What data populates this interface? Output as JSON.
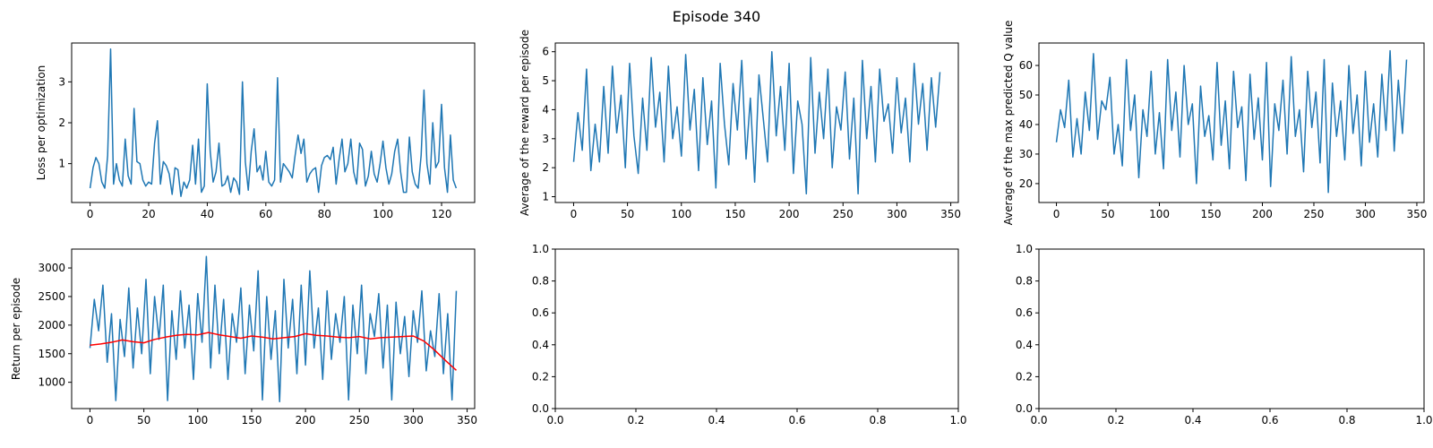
{
  "figure": {
    "suptitle": "Episode 340"
  },
  "chart_data": [
    {
      "id": "loss",
      "type": "line",
      "ylabel": "Loss per optimization",
      "xlim": [
        -6.3,
        131.3
      ],
      "ylim": [
        0.05,
        3.95
      ],
      "xticks": [
        0,
        20,
        40,
        60,
        80,
        100,
        120
      ],
      "yticks": [
        1,
        2,
        3
      ],
      "series": [
        {
          "color": "#1f77b4",
          "x": [
            0,
            1,
            2,
            3,
            4,
            5,
            6,
            7,
            8,
            9,
            10,
            11,
            12,
            13,
            14,
            15,
            16,
            17,
            18,
            19,
            20,
            21,
            22,
            23,
            24,
            25,
            26,
            27,
            28,
            29,
            30,
            31,
            32,
            33,
            34,
            35,
            36,
            37,
            38,
            39,
            40,
            41,
            42,
            43,
            44,
            45,
            46,
            47,
            48,
            49,
            50,
            51,
            52,
            53,
            54,
            55,
            56,
            57,
            58,
            59,
            60,
            61,
            62,
            63,
            64,
            65,
            66,
            67,
            68,
            69,
            70,
            71,
            72,
            73,
            74,
            75,
            76,
            77,
            78,
            79,
            80,
            81,
            82,
            83,
            84,
            85,
            86,
            87,
            88,
            89,
            90,
            91,
            92,
            93,
            94,
            95,
            96,
            97,
            98,
            99,
            100,
            101,
            102,
            103,
            104,
            105,
            106,
            107,
            108,
            109,
            110,
            111,
            112,
            113,
            114,
            115,
            116,
            117,
            118,
            119,
            120,
            121,
            122,
            123,
            124,
            125
          ],
          "y": [
            0.4,
            0.9,
            1.15,
            1.0,
            0.55,
            0.4,
            1.2,
            3.8,
            0.5,
            1.0,
            0.6,
            0.45,
            1.6,
            0.7,
            0.5,
            2.35,
            1.05,
            1.0,
            0.6,
            0.45,
            0.55,
            0.5,
            1.5,
            2.05,
            0.5,
            1.05,
            0.95,
            0.75,
            0.25,
            0.9,
            0.85,
            0.2,
            0.55,
            0.4,
            0.6,
            1.45,
            0.5,
            1.6,
            0.3,
            0.45,
            2.95,
            1.3,
            0.55,
            0.8,
            1.5,
            0.45,
            0.5,
            0.7,
            0.3,
            0.65,
            0.55,
            0.25,
            3.0,
            1.05,
            0.35,
            1.3,
            1.85,
            0.8,
            0.95,
            0.6,
            1.3,
            0.55,
            0.45,
            0.6,
            3.1,
            0.55,
            1.0,
            0.9,
            0.8,
            0.65,
            1.2,
            1.7,
            1.25,
            1.6,
            0.55,
            0.75,
            0.85,
            0.9,
            0.3,
            0.95,
            1.15,
            1.2,
            1.1,
            1.4,
            0.5,
            1.1,
            1.6,
            0.8,
            1.0,
            1.6,
            0.8,
            0.5,
            1.5,
            1.35,
            0.45,
            0.7,
            1.3,
            0.75,
            0.55,
            1.0,
            1.55,
            0.9,
            0.5,
            0.75,
            1.3,
            1.6,
            0.8,
            0.3,
            0.3,
            1.65,
            0.8,
            0.5,
            0.4,
            1.2,
            2.8,
            1.0,
            0.5,
            2.0,
            0.9,
            1.05,
            2.45,
            0.9,
            0.3,
            1.7,
            0.6,
            0.4
          ]
        }
      ]
    },
    {
      "id": "reward",
      "type": "line",
      "ylabel": "Average of the reward per episode",
      "xlim": [
        -17,
        357
      ],
      "ylim": [
        0.8,
        6.3
      ],
      "xticks": [
        0,
        50,
        100,
        150,
        200,
        250,
        300,
        350
      ],
      "yticks": [
        1,
        2,
        3,
        4,
        5,
        6
      ],
      "series": [
        {
          "color": "#1f77b4",
          "x": [
            0,
            4,
            8,
            12,
            16,
            20,
            24,
            28,
            32,
            36,
            40,
            44,
            48,
            52,
            56,
            60,
            64,
            68,
            72,
            76,
            80,
            84,
            88,
            92,
            96,
            100,
            104,
            108,
            112,
            116,
            120,
            124,
            128,
            132,
            136,
            140,
            144,
            148,
            152,
            156,
            160,
            164,
            168,
            172,
            176,
            180,
            184,
            188,
            192,
            196,
            200,
            204,
            208,
            212,
            216,
            220,
            224,
            228,
            232,
            236,
            240,
            244,
            248,
            252,
            256,
            260,
            264,
            268,
            272,
            276,
            280,
            284,
            288,
            292,
            296,
            300,
            304,
            308,
            312,
            316,
            320,
            324,
            328,
            332,
            336,
            340
          ],
          "y": [
            2.2,
            3.9,
            2.6,
            5.4,
            1.9,
            3.5,
            2.2,
            4.8,
            2.5,
            5.5,
            3.2,
            4.5,
            2.0,
            5.6,
            3.1,
            1.8,
            4.4,
            2.6,
            5.8,
            3.4,
            4.6,
            2.2,
            5.5,
            3.0,
            4.1,
            2.4,
            5.9,
            3.3,
            4.7,
            1.9,
            5.1,
            2.8,
            4.3,
            1.3,
            5.6,
            3.5,
            2.1,
            4.9,
            3.3,
            5.7,
            2.3,
            4.4,
            1.5,
            5.2,
            3.7,
            2.2,
            6.0,
            3.1,
            4.8,
            2.6,
            5.6,
            1.8,
            4.3,
            3.5,
            1.1,
            5.8,
            2.5,
            4.6,
            3.0,
            5.4,
            2.0,
            4.1,
            3.3,
            5.3,
            2.3,
            4.4,
            1.1,
            5.7,
            3.0,
            4.8,
            2.2,
            5.4,
            3.6,
            4.2,
            2.5,
            5.1,
            3.2,
            4.4,
            2.2,
            5.6,
            3.5,
            4.9,
            2.6,
            5.1,
            3.4,
            5.3
          ]
        }
      ]
    },
    {
      "id": "qvalue",
      "type": "line",
      "ylabel": "Average of the max predicted Q value",
      "xlim": [
        -17,
        357
      ],
      "ylim": [
        13.6,
        67.6
      ],
      "xticks": [
        0,
        50,
        100,
        150,
        200,
        250,
        300,
        350
      ],
      "yticks": [
        20,
        30,
        40,
        50,
        60
      ],
      "series": [
        {
          "color": "#1f77b4",
          "x": [
            0,
            4,
            8,
            12,
            16,
            20,
            24,
            28,
            32,
            36,
            40,
            44,
            48,
            52,
            56,
            60,
            64,
            68,
            72,
            76,
            80,
            84,
            88,
            92,
            96,
            100,
            104,
            108,
            112,
            116,
            120,
            124,
            128,
            132,
            136,
            140,
            144,
            148,
            152,
            156,
            160,
            164,
            168,
            172,
            176,
            180,
            184,
            188,
            192,
            196,
            200,
            204,
            208,
            212,
            216,
            220,
            224,
            228,
            232,
            236,
            240,
            244,
            248,
            252,
            256,
            260,
            264,
            268,
            272,
            276,
            280,
            284,
            288,
            292,
            296,
            300,
            304,
            308,
            312,
            316,
            320,
            324,
            328,
            332,
            336,
            340
          ],
          "y": [
            34,
            45,
            39,
            55,
            29,
            42,
            30,
            51,
            38,
            64,
            35,
            48,
            45,
            56,
            30,
            40,
            26,
            62,
            38,
            50,
            22,
            45,
            36,
            58,
            30,
            44,
            25,
            62,
            38,
            51,
            29,
            60,
            40,
            47,
            20,
            53,
            36,
            43,
            28,
            61,
            33,
            48,
            25,
            58,
            39,
            46,
            21,
            57,
            35,
            49,
            28,
            61,
            19,
            47,
            38,
            55,
            30,
            63,
            36,
            45,
            24,
            58,
            39,
            51,
            27,
            62,
            17,
            54,
            36,
            48,
            28,
            60,
            37,
            50,
            26,
            58,
            34,
            47,
            29,
            57,
            38,
            65,
            31,
            55,
            37,
            62
          ]
        }
      ]
    },
    {
      "id": "return",
      "type": "line",
      "ylabel": "Return per episode",
      "xlim": [
        -17,
        357
      ],
      "ylim": [
        540,
        3330
      ],
      "xticks": [
        0,
        50,
        100,
        150,
        200,
        250,
        300,
        350
      ],
      "yticks": [
        1000,
        1500,
        2000,
        2500,
        3000
      ],
      "series": [
        {
          "color": "#1f77b4",
          "x": [
            0,
            4,
            8,
            12,
            16,
            20,
            24,
            28,
            32,
            36,
            40,
            44,
            48,
            52,
            56,
            60,
            64,
            68,
            72,
            76,
            80,
            84,
            88,
            92,
            96,
            100,
            104,
            108,
            112,
            116,
            120,
            124,
            128,
            132,
            136,
            140,
            144,
            148,
            152,
            156,
            160,
            164,
            168,
            172,
            176,
            180,
            184,
            188,
            192,
            196,
            200,
            204,
            208,
            212,
            216,
            220,
            224,
            228,
            232,
            236,
            240,
            244,
            248,
            252,
            256,
            260,
            264,
            268,
            272,
            276,
            280,
            284,
            288,
            292,
            296,
            300,
            304,
            308,
            312,
            316,
            320,
            324,
            328,
            332,
            336,
            340
          ],
          "y": [
            1600,
            2450,
            1900,
            2700,
            1350,
            2200,
            680,
            2100,
            1450,
            2650,
            1250,
            2300,
            1500,
            2800,
            1150,
            2500,
            1750,
            2700,
            680,
            2250,
            1400,
            2600,
            1600,
            2350,
            1050,
            2550,
            1700,
            3200,
            1250,
            2700,
            1500,
            2450,
            1050,
            2200,
            1700,
            2650,
            1150,
            2350,
            1550,
            2950,
            690,
            2500,
            1400,
            2250,
            660,
            2800,
            1600,
            2450,
            1150,
            2700,
            1300,
            2950,
            1600,
            2300,
            1050,
            2600,
            1400,
            2200,
            1700,
            2500,
            690,
            2350,
            1500,
            2700,
            1150,
            2200,
            1800,
            2550,
            1250,
            2350,
            690,
            2400,
            1500,
            2150,
            1100,
            2250,
            1700,
            2600,
            1200,
            1900,
            1450,
            2550,
            1150,
            2200,
            690,
            2600
          ]
        },
        {
          "color": "#ff0000",
          "x": [
            0,
            10,
            20,
            30,
            40,
            50,
            60,
            70,
            80,
            90,
            100,
            110,
            120,
            130,
            140,
            150,
            160,
            170,
            180,
            190,
            200,
            210,
            220,
            230,
            240,
            250,
            260,
            270,
            280,
            290,
            300,
            310,
            320,
            330,
            340
          ],
          "y": [
            1650,
            1670,
            1700,
            1740,
            1710,
            1690,
            1750,
            1790,
            1820,
            1840,
            1830,
            1870,
            1830,
            1800,
            1770,
            1810,
            1790,
            1760,
            1780,
            1800,
            1850,
            1820,
            1810,
            1790,
            1780,
            1800,
            1760,
            1780,
            1790,
            1800,
            1810,
            1720,
            1560,
            1380,
            1210
          ]
        }
      ]
    },
    {
      "id": "empty1",
      "type": "line",
      "ylabel": "",
      "xlim": [
        0,
        1
      ],
      "ylim": [
        0,
        1
      ],
      "xticks": [
        0.0,
        0.2,
        0.4,
        0.6,
        0.8,
        1.0
      ],
      "yticks": [
        0.0,
        0.2,
        0.4,
        0.6,
        0.8,
        1.0
      ],
      "series": []
    },
    {
      "id": "empty2",
      "type": "line",
      "ylabel": "",
      "xlim": [
        0,
        1
      ],
      "ylim": [
        0,
        1
      ],
      "xticks": [
        0.0,
        0.2,
        0.4,
        0.6,
        0.8,
        1.0
      ],
      "yticks": [
        0.0,
        0.2,
        0.4,
        0.6,
        0.8,
        1.0
      ],
      "series": []
    }
  ]
}
